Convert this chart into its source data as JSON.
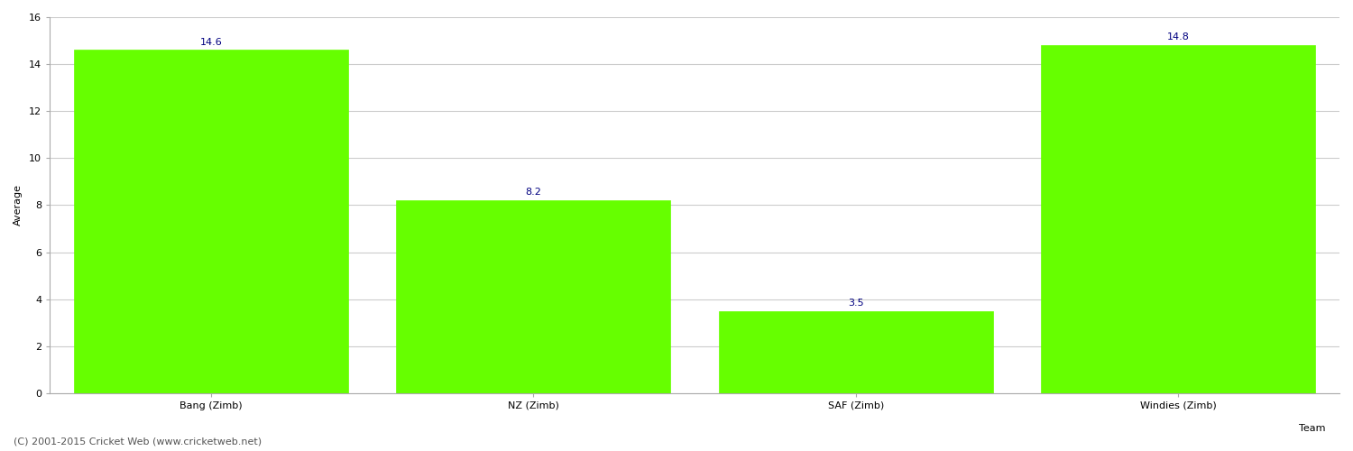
{
  "categories": [
    "Bang (Zimb)",
    "NZ (Zimb)",
    "SAF (Zimb)",
    "Windies (Zimb)"
  ],
  "values": [
    14.6,
    8.2,
    3.5,
    14.8
  ],
  "bar_color": "#66ff00",
  "bar_edge_color": "#66ff00",
  "xlabel": "Team",
  "ylabel": "Average",
  "ylim": [
    0,
    16
  ],
  "yticks": [
    0,
    2,
    4,
    6,
    8,
    10,
    12,
    14,
    16
  ],
  "label_color": "#000080",
  "label_fontsize": 8,
  "xlabel_fontsize": 8,
  "ylabel_fontsize": 8,
  "tick_fontsize": 8,
  "grid_color": "#cccccc",
  "background_color": "#ffffff",
  "footer_text": "(C) 2001-2015 Cricket Web (www.cricketweb.net)",
  "footer_fontsize": 8,
  "footer_color": "#555555"
}
